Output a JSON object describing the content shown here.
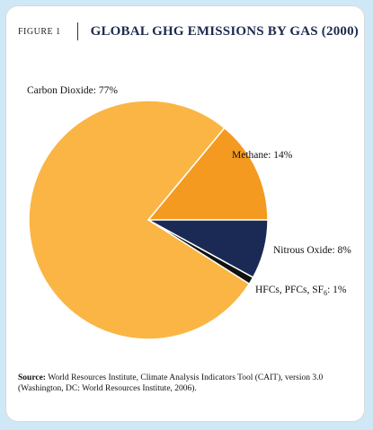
{
  "figure": {
    "label": "FIGURE 1",
    "title": "GLOBAL GHG EMISSIONS BY GAS (2000)"
  },
  "chart_data": {
    "type": "pie",
    "title": "GLOBAL GHG EMISSIONS BY GAS (2000)",
    "slices": [
      {
        "name": "Carbon Dioxide",
        "value": 77,
        "label": "Carbon Dioxide: 77%",
        "color": "#fbb544"
      },
      {
        "name": "Methane",
        "value": 14,
        "label": "Methane: 14%",
        "color": "#f59a20"
      },
      {
        "name": "Nitrous Oxide",
        "value": 8,
        "label": "Nitrous Oxide: 8%",
        "color": "#1b2a55"
      },
      {
        "name": "HFCs, PFCs, SF6",
        "value": 1,
        "label": "HFCs, PFCs, SF6: 1%",
        "color": "#111111"
      }
    ]
  },
  "source": {
    "prefix": "Source:",
    "text": "World Resources Institute, Climate Analysis Indicators Tool (CAIT), version 3.0 (Washington, DC: World Resources Institute, 2006)."
  }
}
